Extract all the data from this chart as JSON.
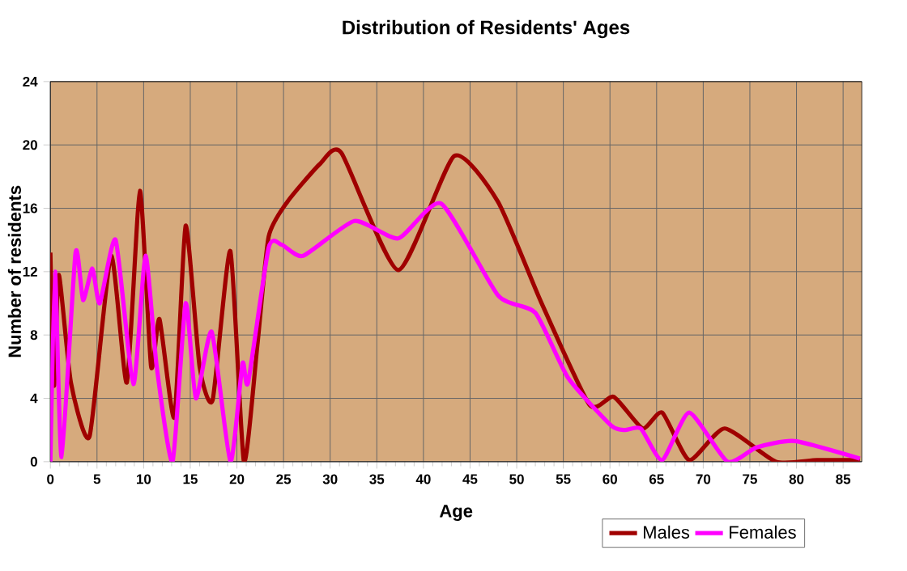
{
  "chart_data": {
    "type": "line",
    "title": "Distribution of Residents' Ages",
    "xlabel": "Age",
    "ylabel": "Number of residents",
    "xlim": [
      0,
      87
    ],
    "xticks": [
      0,
      5,
      10,
      15,
      20,
      25,
      30,
      35,
      40,
      45,
      50,
      55,
      60,
      65,
      70,
      75,
      80,
      85
    ],
    "ylim": [
      0,
      24
    ],
    "yticks": [
      0,
      4,
      8,
      12,
      16,
      20,
      24
    ],
    "grid": true,
    "legend": "bottom right",
    "marker": "none",
    "line_style": "solid",
    "series": [
      {
        "name": "Males",
        "color": "#a00000",
        "x": [
          0,
          0.4,
          0.9,
          2.2,
          4.2,
          6.5,
          8.2,
          9.6,
          10.8,
          11.7,
          13.3,
          14.5,
          16.0,
          17.4,
          19.3,
          20.75,
          22.2,
          23.4,
          25.4,
          28.9,
          31.2,
          37.3,
          43.3,
          48.0,
          52.6,
          57.8,
          60.4,
          63.5,
          65.6,
          68.5,
          72.3,
          77.8,
          82.2,
          86.8
        ],
        "values": [
          13.2,
          4.8,
          11.8,
          5.0,
          1.6,
          13.0,
          5.0,
          17.1,
          6.0,
          9.0,
          2.8,
          14.9,
          6.0,
          3.9,
          13.3,
          0,
          7.4,
          14.2,
          16.4,
          18.8,
          19.5,
          12.1,
          19.3,
          16.4,
          10.1,
          3.6,
          4.1,
          2.1,
          3.1,
          0.1,
          2.1,
          0,
          0.1,
          0.1
        ]
      },
      {
        "name": "Females",
        "color": "#ff00ff",
        "x": [
          0,
          0.5,
          1.2,
          2.7,
          3.5,
          4.5,
          5.3,
          7.0,
          8.9,
          10.2,
          11.4,
          13.1,
          14.5,
          15.6,
          17.3,
          19.3,
          20.6,
          21.2,
          23.4,
          24.8,
          27.1,
          32.6,
          37.3,
          41.9,
          48.0,
          52.0,
          55.5,
          60.1,
          61.6,
          63.3,
          65.6,
          68.5,
          72.6,
          75.7,
          79.8,
          86.8
        ],
        "values": [
          0,
          12.0,
          0.3,
          13.2,
          10.2,
          12.2,
          10.0,
          14.0,
          4.9,
          13.0,
          6.0,
          0,
          10.0,
          4.0,
          8.2,
          0,
          6.2,
          5.0,
          13.5,
          13.7,
          13.0,
          15.2,
          14.1,
          16.3,
          10.5,
          9.4,
          5.3,
          2.3,
          2.0,
          2.1,
          0.1,
          3.1,
          0,
          0.9,
          1.3,
          0.2
        ]
      }
    ]
  }
}
